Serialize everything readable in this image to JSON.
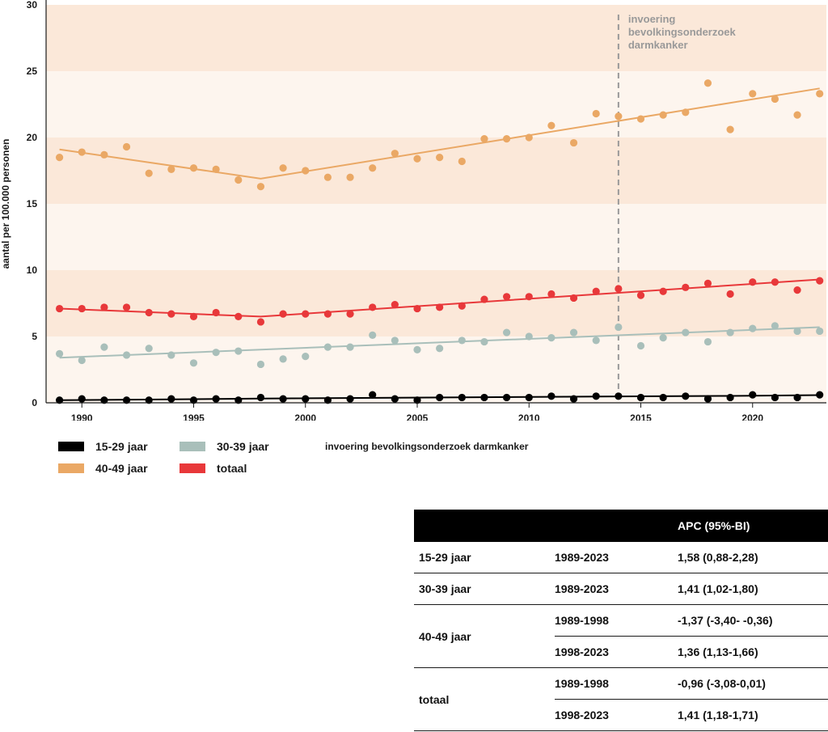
{
  "chart_data": {
    "type": "scatter",
    "ylabel": "aantal per 100.000 personen",
    "ylim": [
      0,
      30
    ],
    "xlim": [
      1988.4,
      2023.3
    ],
    "yticks": [
      0,
      5,
      10,
      15,
      20,
      25,
      30
    ],
    "xticks": [
      1990,
      1995,
      2000,
      2005,
      2010,
      2015,
      2020
    ],
    "annotation": {
      "x": 2014,
      "lines": [
        "invoering",
        "bevolkingsonderzoek",
        "darmkanker"
      ]
    },
    "colors": {
      "band_dark": "#fbe8d9",
      "band_light": "#fdf5ee",
      "axis": "#1a1a1a",
      "annotation": "#999999"
    },
    "x": [
      1989,
      1990,
      1991,
      1992,
      1993,
      1994,
      1995,
      1996,
      1997,
      1998,
      1999,
      2000,
      2001,
      2002,
      2003,
      2004,
      2005,
      2006,
      2007,
      2008,
      2009,
      2010,
      2011,
      2012,
      2013,
      2014,
      2015,
      2016,
      2017,
      2018,
      2019,
      2020,
      2021,
      2022,
      2023
    ],
    "series": [
      {
        "name": "40-49 jaar",
        "color": "#eaa865",
        "values": [
          18.5,
          18.9,
          18.7,
          19.3,
          17.3,
          17.6,
          17.7,
          17.6,
          16.8,
          16.3,
          17.7,
          17.5,
          17.0,
          17.0,
          17.7,
          18.8,
          18.4,
          18.5,
          18.2,
          19.9,
          19.9,
          20.0,
          20.9,
          19.6,
          21.8,
          21.6,
          21.4,
          21.7,
          21.9,
          24.1,
          20.6,
          23.3,
          22.9,
          21.7,
          23.3
        ],
        "trend": [
          [
            1989,
            19.1
          ],
          [
            1998,
            16.9
          ],
          [
            2023,
            23.7
          ]
        ]
      },
      {
        "name": "totaal",
        "color": "#e8383a",
        "values": [
          7.1,
          7.1,
          7.2,
          7.2,
          6.8,
          6.7,
          6.5,
          6.8,
          6.5,
          6.1,
          6.7,
          6.7,
          6.7,
          6.7,
          7.2,
          7.4,
          7.1,
          7.2,
          7.3,
          7.8,
          8.0,
          8.0,
          8.2,
          7.9,
          8.4,
          8.6,
          8.1,
          8.4,
          8.7,
          9.0,
          8.2,
          9.1,
          9.1,
          8.5,
          9.2
        ],
        "trend": [
          [
            1989,
            7.1
          ],
          [
            1998,
            6.5
          ],
          [
            2023,
            9.3
          ]
        ]
      },
      {
        "name": "30-39 jaar",
        "color": "#a9bfba",
        "values": [
          3.7,
          3.2,
          4.2,
          3.6,
          4.1,
          3.6,
          3.0,
          3.8,
          3.9,
          2.9,
          3.3,
          3.5,
          4.2,
          4.2,
          5.1,
          4.7,
          4.0,
          4.1,
          4.7,
          4.6,
          5.3,
          5.0,
          4.9,
          5.3,
          4.7,
          5.7,
          4.3,
          4.9,
          5.3,
          4.6,
          5.3,
          5.6,
          5.8,
          5.4,
          5.4
        ],
        "trend": [
          [
            1989,
            3.4
          ],
          [
            2023,
            5.7
          ]
        ]
      },
      {
        "name": "15-29 jaar",
        "color": "#000000",
        "values": [
          0.2,
          0.3,
          0.2,
          0.2,
          0.2,
          0.3,
          0.2,
          0.3,
          0.2,
          0.4,
          0.3,
          0.3,
          0.2,
          0.3,
          0.6,
          0.3,
          0.2,
          0.4,
          0.4,
          0.4,
          0.4,
          0.4,
          0.5,
          0.3,
          0.5,
          0.5,
          0.4,
          0.4,
          0.5,
          0.3,
          0.4,
          0.6,
          0.4,
          0.4,
          0.6
        ],
        "trend": [
          [
            1989,
            0.2
          ],
          [
            1994,
            0.26
          ],
          [
            1998,
            0.32
          ],
          [
            2014,
            0.48
          ],
          [
            2019,
            0.52
          ],
          [
            2023,
            0.58
          ]
        ]
      }
    ]
  },
  "legend": {
    "items": [
      {
        "label": "15-29 jaar",
        "color": "#000000"
      },
      {
        "label": "30-39 jaar",
        "color": "#a9bfba"
      },
      {
        "label": "40-49 jaar",
        "color": "#eaa865"
      },
      {
        "label": "totaal",
        "color": "#e8383a"
      }
    ],
    "note": "invoering bevolkingsonderzoek darmkanker"
  },
  "table": {
    "header": "APC (95%-BI)",
    "rows": [
      {
        "group": "15-29 jaar",
        "period": "1989-2023",
        "apc": "1,58 (0,88-2,28)"
      },
      {
        "group": "30-39 jaar",
        "period": "1989-2023",
        "apc": "1,41 (1,02-1,80)"
      },
      {
        "group": "40-49 jaar",
        "period": "1989-1998",
        "apc": "-1,37 (-3,40- -0,36)"
      },
      {
        "group": "",
        "period": "1998-2023",
        "apc": "1,36 (1,13-1,66)"
      },
      {
        "group": "totaal",
        "period": "1989-1998",
        "apc": "-0,96 (-3,08-0,01)"
      },
      {
        "group": "",
        "period": "1998-2023",
        "apc": "1,41 (1,18-1,71)"
      }
    ]
  }
}
